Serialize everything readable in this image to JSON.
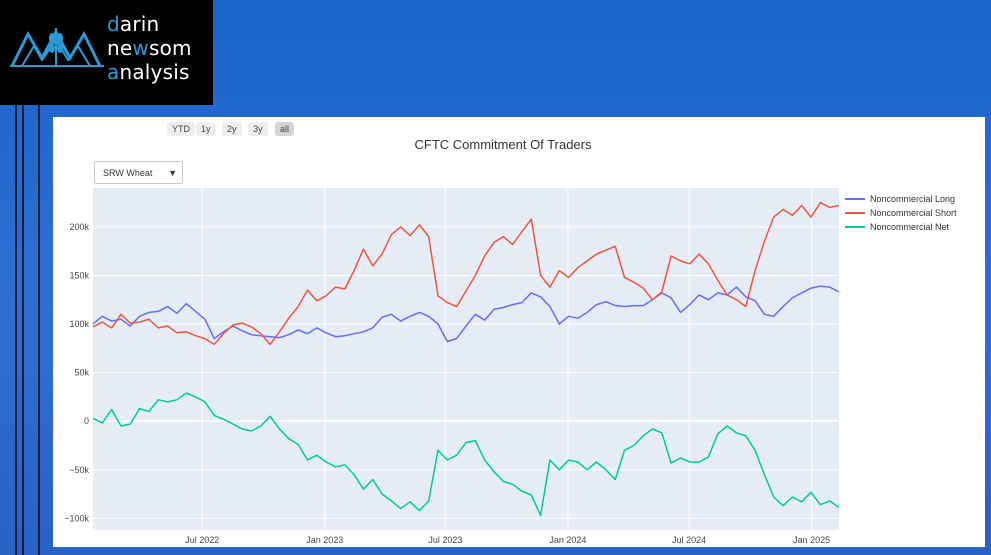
{
  "brand": {
    "line1_accent": "d",
    "line1_rest": "arin",
    "line2_pre": "ne",
    "line2_accent": "w",
    "line2_rest": "som",
    "line3_accent": "a",
    "line3_rest": "nalysis",
    "accent_color": "#2a9ad9"
  },
  "range_selector": {
    "buttons": [
      "YTD",
      "1y",
      "2y",
      "3y",
      "all"
    ],
    "active": "all"
  },
  "dropdown": {
    "selected": "SRW Wheat"
  },
  "chart_data": {
    "type": "line",
    "title": "CFTC Commitment Of Traders",
    "x_start": "2022-01-18",
    "x_end": "2025-02-11",
    "x_ticks": [
      {
        "date": "2022-07-01",
        "label": "Jul 2022"
      },
      {
        "date": "2023-01-01",
        "label": "Jan 2023"
      },
      {
        "date": "2023-07-01",
        "label": "Jul 2023"
      },
      {
        "date": "2024-01-01",
        "label": "Jan 2024"
      },
      {
        "date": "2024-07-01",
        "label": "Jul 2024"
      },
      {
        "date": "2025-01-01",
        "label": "Jan 2025"
      }
    ],
    "ylim": [
      -112000,
      240000
    ],
    "y_ticks": [
      {
        "value": -100000,
        "label": "−100k"
      },
      {
        "value": -50000,
        "label": "−50k"
      },
      {
        "value": 0,
        "label": "0"
      },
      {
        "value": 50000,
        "label": "50k"
      },
      {
        "value": 100000,
        "label": "100k"
      },
      {
        "value": 150000,
        "label": "150k"
      },
      {
        "value": 200000,
        "label": "200k"
      }
    ],
    "grid": true,
    "legend_position": "top-right",
    "series": [
      {
        "name": "Noncommercial Long",
        "color": "#636efa",
        "points": [
          [
            "2022-01-18",
            100000
          ],
          [
            "2022-02-01",
            108000
          ],
          [
            "2022-02-15",
            103000
          ],
          [
            "2022-03-01",
            105000
          ],
          [
            "2022-03-15",
            98000
          ],
          [
            "2022-03-29",
            108000
          ],
          [
            "2022-04-12",
            112000
          ],
          [
            "2022-04-26",
            113000
          ],
          [
            "2022-05-10",
            118000
          ],
          [
            "2022-05-24",
            111000
          ],
          [
            "2022-06-07",
            121000
          ],
          [
            "2022-06-21",
            113000
          ],
          [
            "2022-07-05",
            105000
          ],
          [
            "2022-07-19",
            85000
          ],
          [
            "2022-08-02",
            92000
          ],
          [
            "2022-08-16",
            98000
          ],
          [
            "2022-08-30",
            93000
          ],
          [
            "2022-09-13",
            89000
          ],
          [
            "2022-09-27",
            88000
          ],
          [
            "2022-10-11",
            87000
          ],
          [
            "2022-10-25",
            86000
          ],
          [
            "2022-11-08",
            89000
          ],
          [
            "2022-11-22",
            94000
          ],
          [
            "2022-12-06",
            90000
          ],
          [
            "2022-12-20",
            96000
          ],
          [
            "2023-01-03",
            91000
          ],
          [
            "2023-01-17",
            87000
          ],
          [
            "2023-01-31",
            88000
          ],
          [
            "2023-02-14",
            90000
          ],
          [
            "2023-02-28",
            92000
          ],
          [
            "2023-03-14",
            96000
          ],
          [
            "2023-03-28",
            107000
          ],
          [
            "2023-04-11",
            110000
          ],
          [
            "2023-04-25",
            103000
          ],
          [
            "2023-05-09",
            108000
          ],
          [
            "2023-05-23",
            112000
          ],
          [
            "2023-06-06",
            108000
          ],
          [
            "2023-06-20",
            100000
          ],
          [
            "2023-07-04",
            82000
          ],
          [
            "2023-07-18",
            85000
          ],
          [
            "2023-08-01",
            98000
          ],
          [
            "2023-08-15",
            110000
          ],
          [
            "2023-08-29",
            104000
          ],
          [
            "2023-09-12",
            115000
          ],
          [
            "2023-09-26",
            117000
          ],
          [
            "2023-10-10",
            120000
          ],
          [
            "2023-10-24",
            122000
          ],
          [
            "2023-11-07",
            132000
          ],
          [
            "2023-11-21",
            128000
          ],
          [
            "2023-12-05",
            118000
          ],
          [
            "2023-12-19",
            100000
          ],
          [
            "2024-01-02",
            108000
          ],
          [
            "2024-01-16",
            106000
          ],
          [
            "2024-01-30",
            112000
          ],
          [
            "2024-02-13",
            120000
          ],
          [
            "2024-02-27",
            123000
          ],
          [
            "2024-03-12",
            119000
          ],
          [
            "2024-03-26",
            118000
          ],
          [
            "2024-04-09",
            119000
          ],
          [
            "2024-04-23",
            119000
          ],
          [
            "2024-05-07",
            125000
          ],
          [
            "2024-05-21",
            132000
          ],
          [
            "2024-06-04",
            127000
          ],
          [
            "2024-06-18",
            112000
          ],
          [
            "2024-07-02",
            120000
          ],
          [
            "2024-07-16",
            130000
          ],
          [
            "2024-07-30",
            125000
          ],
          [
            "2024-08-13",
            132000
          ],
          [
            "2024-08-27",
            130000
          ],
          [
            "2024-09-10",
            138000
          ],
          [
            "2024-09-24",
            128000
          ],
          [
            "2024-10-08",
            124000
          ],
          [
            "2024-10-22",
            110000
          ],
          [
            "2024-11-05",
            108000
          ],
          [
            "2024-11-19",
            118000
          ],
          [
            "2024-12-03",
            127000
          ],
          [
            "2024-12-17",
            132000
          ],
          [
            "2024-12-31",
            137000
          ],
          [
            "2025-01-14",
            139000
          ],
          [
            "2025-01-28",
            138000
          ],
          [
            "2025-02-11",
            133000
          ]
        ]
      },
      {
        "name": "Noncommercial Short",
        "color": "#ef553b",
        "points": [
          [
            "2022-01-18",
            97000
          ],
          [
            "2022-02-01",
            102000
          ],
          [
            "2022-02-15",
            96000
          ],
          [
            "2022-03-01",
            110000
          ],
          [
            "2022-03-15",
            101000
          ],
          [
            "2022-03-29",
            102000
          ],
          [
            "2022-04-12",
            105000
          ],
          [
            "2022-04-26",
            96000
          ],
          [
            "2022-05-10",
            98000
          ],
          [
            "2022-05-24",
            91000
          ],
          [
            "2022-06-07",
            92000
          ],
          [
            "2022-06-21",
            88000
          ],
          [
            "2022-07-05",
            85000
          ],
          [
            "2022-07-19",
            79000
          ],
          [
            "2022-08-02",
            90000
          ],
          [
            "2022-08-16",
            99000
          ],
          [
            "2022-08-30",
            101000
          ],
          [
            "2022-09-13",
            97000
          ],
          [
            "2022-09-27",
            90000
          ],
          [
            "2022-10-11",
            79000
          ],
          [
            "2022-10-25",
            92000
          ],
          [
            "2022-11-08",
            106000
          ],
          [
            "2022-11-22",
            118000
          ],
          [
            "2022-12-06",
            135000
          ],
          [
            "2022-12-20",
            124000
          ],
          [
            "2023-01-03",
            129000
          ],
          [
            "2023-01-17",
            138000
          ],
          [
            "2023-01-31",
            136000
          ],
          [
            "2023-02-14",
            155000
          ],
          [
            "2023-02-28",
            177000
          ],
          [
            "2023-03-14",
            160000
          ],
          [
            "2023-03-28",
            172000
          ],
          [
            "2023-04-11",
            192000
          ],
          [
            "2023-04-25",
            200000
          ],
          [
            "2023-05-09",
            191000
          ],
          [
            "2023-05-23",
            202000
          ],
          [
            "2023-06-06",
            190000
          ],
          [
            "2023-06-20",
            129000
          ],
          [
            "2023-07-04",
            122000
          ],
          [
            "2023-07-18",
            118000
          ],
          [
            "2023-08-01",
            134000
          ],
          [
            "2023-08-15",
            150000
          ],
          [
            "2023-08-29",
            170000
          ],
          [
            "2023-09-12",
            184000
          ],
          [
            "2023-09-26",
            190000
          ],
          [
            "2023-10-10",
            182000
          ],
          [
            "2023-10-24",
            195000
          ],
          [
            "2023-11-07",
            208000
          ],
          [
            "2023-11-21",
            150000
          ],
          [
            "2023-12-05",
            138000
          ],
          [
            "2023-12-19",
            155000
          ],
          [
            "2024-01-02",
            148000
          ],
          [
            "2024-01-16",
            158000
          ],
          [
            "2024-01-30",
            165000
          ],
          [
            "2024-02-13",
            172000
          ],
          [
            "2024-02-27",
            176000
          ],
          [
            "2024-03-12",
            180000
          ],
          [
            "2024-03-26",
            148000
          ],
          [
            "2024-04-09",
            143000
          ],
          [
            "2024-04-23",
            137000
          ],
          [
            "2024-05-07",
            125000
          ],
          [
            "2024-05-21",
            133000
          ],
          [
            "2024-06-04",
            170000
          ],
          [
            "2024-06-18",
            165000
          ],
          [
            "2024-07-02",
            162000
          ],
          [
            "2024-07-16",
            172000
          ],
          [
            "2024-07-30",
            162000
          ],
          [
            "2024-08-13",
            145000
          ],
          [
            "2024-08-27",
            130000
          ],
          [
            "2024-09-10",
            125000
          ],
          [
            "2024-09-24",
            118000
          ],
          [
            "2024-10-08",
            155000
          ],
          [
            "2024-10-22",
            185000
          ],
          [
            "2024-11-05",
            210000
          ],
          [
            "2024-11-19",
            218000
          ],
          [
            "2024-12-03",
            212000
          ],
          [
            "2024-12-17",
            222000
          ],
          [
            "2024-12-31",
            210000
          ],
          [
            "2025-01-14",
            225000
          ],
          [
            "2025-01-28",
            220000
          ],
          [
            "2025-02-11",
            222000
          ]
        ]
      },
      {
        "name": "Noncommercial Net",
        "color": "#00cc96",
        "points": [
          [
            "2022-01-18",
            3000
          ],
          [
            "2022-02-01",
            -2000
          ],
          [
            "2022-02-15",
            12000
          ],
          [
            "2022-03-01",
            -5000
          ],
          [
            "2022-03-15",
            -3000
          ],
          [
            "2022-03-29",
            13000
          ],
          [
            "2022-04-12",
            10000
          ],
          [
            "2022-04-26",
            22000
          ],
          [
            "2022-05-10",
            20000
          ],
          [
            "2022-05-24",
            22000
          ],
          [
            "2022-06-07",
            29000
          ],
          [
            "2022-06-21",
            25000
          ],
          [
            "2022-07-05",
            20000
          ],
          [
            "2022-07-19",
            6000
          ],
          [
            "2022-08-02",
            2000
          ],
          [
            "2022-08-16",
            -3000
          ],
          [
            "2022-08-30",
            -8000
          ],
          [
            "2022-09-13",
            -10000
          ],
          [
            "2022-09-27",
            -5000
          ],
          [
            "2022-10-11",
            5000
          ],
          [
            "2022-10-25",
            -8000
          ],
          [
            "2022-11-08",
            -18000
          ],
          [
            "2022-11-22",
            -24000
          ],
          [
            "2022-12-06",
            -40000
          ],
          [
            "2022-12-20",
            -35000
          ],
          [
            "2023-01-03",
            -42000
          ],
          [
            "2023-01-17",
            -47000
          ],
          [
            "2023-01-31",
            -45000
          ],
          [
            "2023-02-14",
            -55000
          ],
          [
            "2023-02-28",
            -70000
          ],
          [
            "2023-03-14",
            -60000
          ],
          [
            "2023-03-28",
            -75000
          ],
          [
            "2023-04-11",
            -82000
          ],
          [
            "2023-04-25",
            -90000
          ],
          [
            "2023-05-09",
            -83000
          ],
          [
            "2023-05-23",
            -92000
          ],
          [
            "2023-06-06",
            -82000
          ],
          [
            "2023-06-20",
            -30000
          ],
          [
            "2023-07-04",
            -40000
          ],
          [
            "2023-07-18",
            -35000
          ],
          [
            "2023-08-01",
            -22000
          ],
          [
            "2023-08-15",
            -20000
          ],
          [
            "2023-08-29",
            -40000
          ],
          [
            "2023-09-12",
            -52000
          ],
          [
            "2023-09-26",
            -62000
          ],
          [
            "2023-10-10",
            -65000
          ],
          [
            "2023-10-24",
            -72000
          ],
          [
            "2023-11-07",
            -76000
          ],
          [
            "2023-11-21",
            -97000
          ],
          [
            "2023-12-05",
            -40000
          ],
          [
            "2023-12-19",
            -50000
          ],
          [
            "2024-01-02",
            -40000
          ],
          [
            "2024-01-16",
            -42000
          ],
          [
            "2024-01-30",
            -50000
          ],
          [
            "2024-02-13",
            -42000
          ],
          [
            "2024-02-27",
            -50000
          ],
          [
            "2024-03-12",
            -60000
          ],
          [
            "2024-03-26",
            -30000
          ],
          [
            "2024-04-09",
            -25000
          ],
          [
            "2024-04-23",
            -15000
          ],
          [
            "2024-05-07",
            -8000
          ],
          [
            "2024-05-21",
            -12000
          ],
          [
            "2024-06-04",
            -43000
          ],
          [
            "2024-06-18",
            -38000
          ],
          [
            "2024-07-02",
            -42000
          ],
          [
            "2024-07-16",
            -42000
          ],
          [
            "2024-07-30",
            -37000
          ],
          [
            "2024-08-13",
            -13000
          ],
          [
            "2024-08-27",
            -5000
          ],
          [
            "2024-09-10",
            -12000
          ],
          [
            "2024-09-24",
            -15000
          ],
          [
            "2024-10-08",
            -30000
          ],
          [
            "2024-10-22",
            -55000
          ],
          [
            "2024-11-05",
            -78000
          ],
          [
            "2024-11-19",
            -87000
          ],
          [
            "2024-12-03",
            -78000
          ],
          [
            "2024-12-17",
            -83000
          ],
          [
            "2024-12-31",
            -73000
          ],
          [
            "2025-01-14",
            -86000
          ],
          [
            "2025-01-28",
            -82000
          ],
          [
            "2025-02-11",
            -89000
          ]
        ]
      }
    ]
  }
}
